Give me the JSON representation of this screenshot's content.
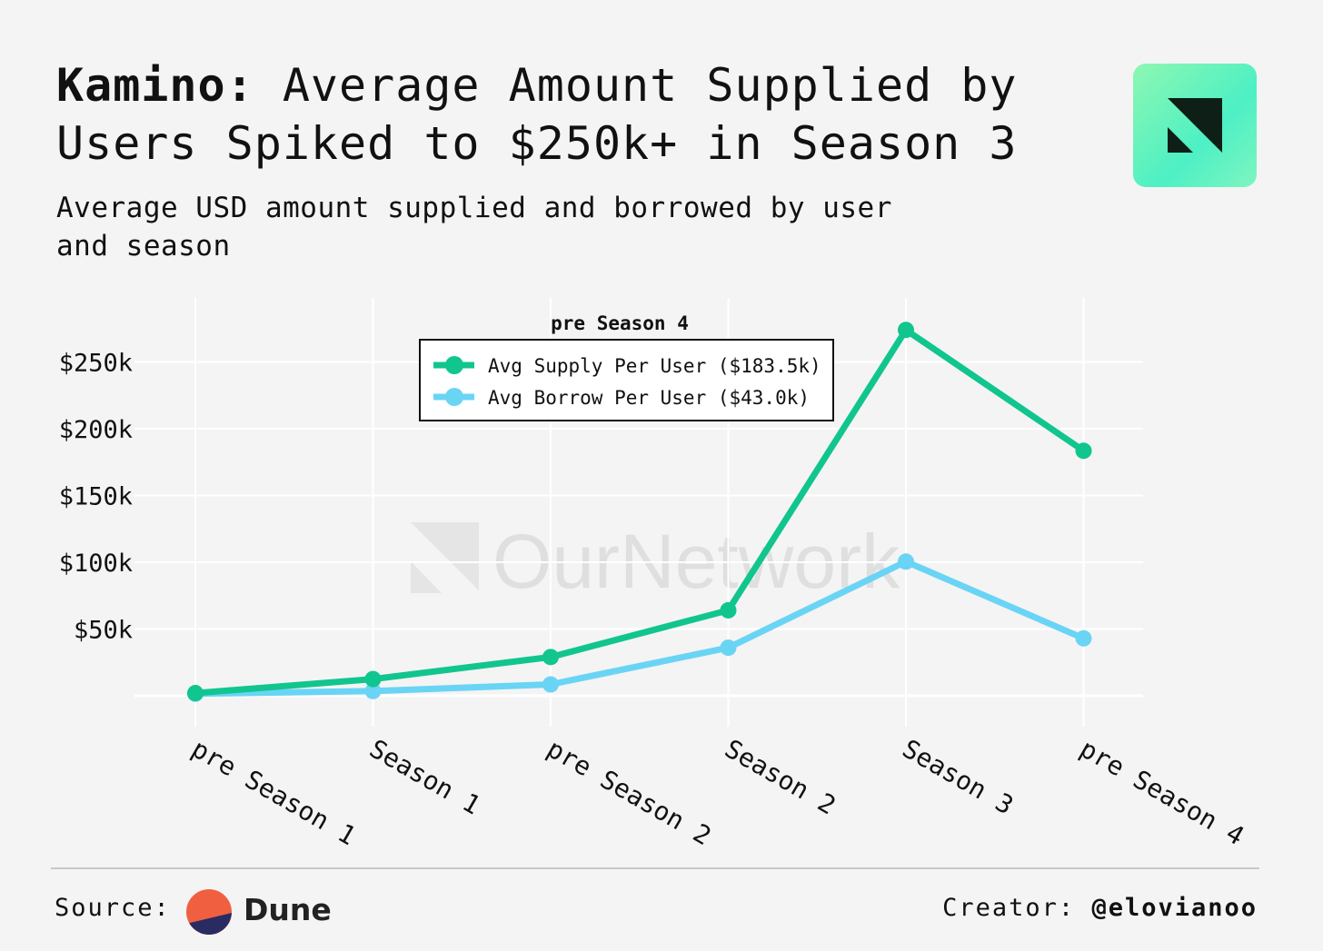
{
  "header": {
    "title_bold": "Kamino:",
    "title_rest": " Average Amount Supplied by Users Spiked to $250k+ in Season 3",
    "subtitle": "Average USD amount supplied and borrowed by user and season"
  },
  "footer": {
    "source_label": "Source:",
    "source_name": "Dune",
    "creator_label": "Creator:",
    "creator_handle": "@elovianoo"
  },
  "watermark": "OurNetwork",
  "colors": {
    "supply": "#11c58e",
    "borrow": "#6ad4f5",
    "grid": "#ffffff",
    "background": "#f4f4f4"
  },
  "chart_data": {
    "type": "line",
    "categories": [
      "pre Season 1",
      "Season 1",
      "pre Season 2",
      "Season 2",
      "Season 3",
      "pre Season 4"
    ],
    "series": [
      {
        "name": "Avg Supply Per User ($183.5k)",
        "values": [
          2000,
          12500,
          29000,
          64000,
          274000,
          183500
        ]
      },
      {
        "name": "Avg Borrow Per User ($43.0k)",
        "values": [
          1500,
          3500,
          8500,
          36000,
          100500,
          43000
        ]
      }
    ],
    "ylim": [
      0,
      275000
    ],
    "yticks": [
      50000,
      100000,
      150000,
      200000,
      250000
    ],
    "ytick_labels": [
      "$50k",
      "$100k",
      "$150k",
      "$200k",
      "$250k"
    ],
    "legend_title": "pre Season 4",
    "legend_position": "top-center",
    "grid": true
  }
}
